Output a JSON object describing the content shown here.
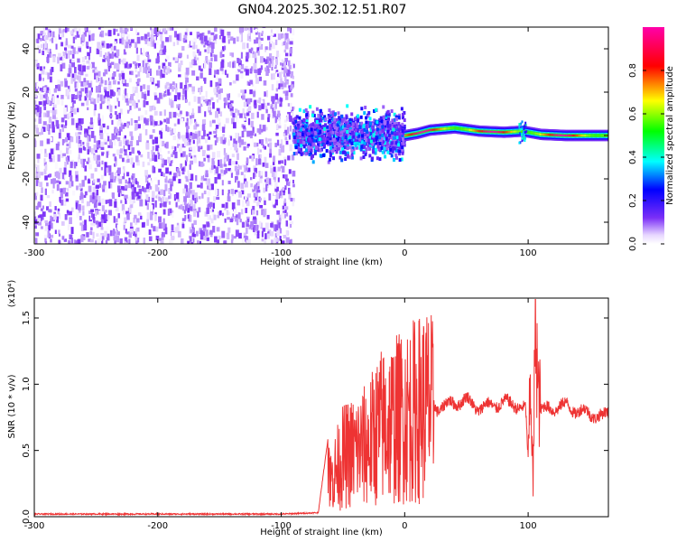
{
  "title": "GN04.2025.302.12.51.R07",
  "chart_data": [
    {
      "type": "heatmap",
      "title": "GN04.2025.302.12.51.R07",
      "xlabel": "Height of straight line (km)",
      "ylabel": "Frequency (Hz)",
      "xlim": [
        -300,
        165
      ],
      "ylim": [
        -50,
        50
      ],
      "xticks": [
        -300,
        -200,
        -100,
        0,
        100
      ],
      "yticks": [
        -40,
        -20,
        0,
        20,
        40
      ],
      "colorbar": {
        "label": "Normalized spectral amplitude",
        "range": [
          0,
          1
        ],
        "ticks": [
          "0.0",
          "0.2",
          "0.4",
          "0.6",
          "0.8"
        ],
        "colors": [
          "#ffffff",
          "#7b2ff7",
          "#0000ff",
          "#00ffff",
          "#00ff00",
          "#ffff00",
          "#ff0000",
          "#ff00ff"
        ]
      },
      "regions": [
        {
          "name": "noise",
          "x": [
            -300,
            -90
          ],
          "freq": [
            -50,
            50
          ],
          "amplitude": [
            0.0,
            0.15
          ]
        },
        {
          "name": "onset",
          "x": [
            -90,
            0
          ],
          "freq": [
            -15,
            12
          ],
          "amplitude": [
            0.1,
            0.45
          ]
        },
        {
          "name": "signal",
          "x": [
            0,
            165
          ],
          "freq": [
            -2,
            4
          ],
          "amplitude": [
            0.6,
            0.95
          ]
        }
      ],
      "signal_track": [
        {
          "x": 0,
          "freq": 0
        },
        {
          "x": 10,
          "freq": 1
        },
        {
          "x": 20,
          "freq": 2.5
        },
        {
          "x": 40,
          "freq": 3.5
        },
        {
          "x": 60,
          "freq": 2
        },
        {
          "x": 80,
          "freq": 1.5
        },
        {
          "x": 95,
          "freq": 2
        },
        {
          "x": 110,
          "freq": 0.5
        },
        {
          "x": 130,
          "freq": 0
        },
        {
          "x": 165,
          "freq": 0
        }
      ]
    },
    {
      "type": "line",
      "xlabel": "Height of straight line (km)",
      "ylabel": "SNR (10 * v/v)",
      "yscale_note": "(x10⁴)",
      "xlim": [
        -300,
        165
      ],
      "ylim": [
        0,
        1.65
      ],
      "xticks": [
        -300,
        -200,
        -100,
        0,
        100
      ],
      "yticks": [
        "0.0",
        "0.5",
        "1.0",
        "1.5"
      ],
      "color": "#ee3333",
      "series": [
        {
          "x": [
            -300,
            -250,
            -200,
            -150,
            -100,
            -70,
            -62,
            -60,
            -55,
            -50,
            -40,
            -30,
            -20,
            -10,
            0,
            10,
            20,
            24,
            26,
            30,
            40,
            50,
            60,
            70,
            80,
            90,
            98,
            100,
            102,
            104,
            106,
            108,
            110,
            120,
            130,
            140,
            150,
            160,
            165
          ],
          "y": [
            0.02,
            0.02,
            0.02,
            0.02,
            0.02,
            0.03,
            0.6,
            0.3,
            0.4,
            0.5,
            0.55,
            0.6,
            0.75,
            0.8,
            0.85,
            0.9,
            0.95,
            0.85,
            0.82,
            0.83,
            0.86,
            0.88,
            0.82,
            0.84,
            0.86,
            0.85,
            0.8,
            0.4,
            1.0,
            0.2,
            1.6,
            0.85,
            0.8,
            0.82,
            0.84,
            0.8,
            0.78,
            0.75,
            0.78
          ]
        }
      ]
    }
  ]
}
